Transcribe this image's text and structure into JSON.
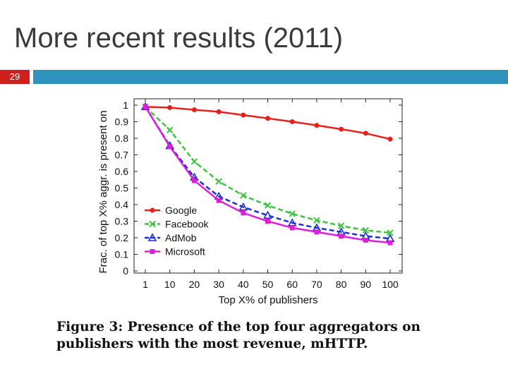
{
  "slide": {
    "title": "More recent results (2011)",
    "number": "29",
    "caption_line1": "Figure 3:  Presence of the top four aggregators on",
    "caption_line2": "publishers with the most revenue, mHTTP."
  },
  "chart_data": {
    "type": "line",
    "title": "",
    "xlabel": "Top X% of publishers",
    "ylabel": "Frac. of top X% aggr. is present on",
    "categories": [
      "1",
      "10",
      "20",
      "30",
      "40",
      "50",
      "60",
      "70",
      "80",
      "90",
      "100"
    ],
    "ylim": [
      0,
      1
    ],
    "yticks": [
      "0",
      "0.1",
      "0.2",
      "0.3",
      "0.4",
      "0.5",
      "0.6",
      "0.7",
      "0.8",
      "0.9",
      "1"
    ],
    "legend_position": "center-left",
    "series": [
      {
        "name": "Google",
        "color": "#e8201c",
        "dash": "solid",
        "marker": "circle",
        "values": [
          0.99,
          0.985,
          0.972,
          0.96,
          0.94,
          0.92,
          0.9,
          0.878,
          0.855,
          0.83,
          0.795
        ]
      },
      {
        "name": "Facebook",
        "color": "#3fc23f",
        "dash": "dashed",
        "marker": "x",
        "values": [
          0.99,
          0.85,
          0.66,
          0.54,
          0.455,
          0.395,
          0.345,
          0.305,
          0.272,
          0.245,
          0.23
        ]
      },
      {
        "name": "AdMob",
        "color": "#1c2fd8",
        "dash": "dashed",
        "marker": "triangle",
        "values": [
          0.99,
          0.755,
          0.565,
          0.45,
          0.385,
          0.335,
          0.29,
          0.26,
          0.235,
          0.21,
          0.195
        ]
      },
      {
        "name": "Microsoft",
        "color": "#e01ed8",
        "dash": "solid",
        "marker": "square",
        "values": [
          0.99,
          0.75,
          0.545,
          0.425,
          0.35,
          0.3,
          0.26,
          0.235,
          0.21,
          0.185,
          0.17
        ]
      }
    ]
  }
}
